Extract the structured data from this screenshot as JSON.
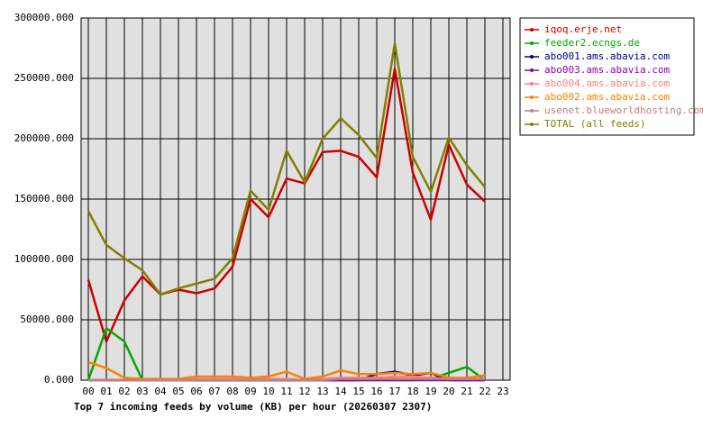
{
  "chart_data": {
    "type": "line",
    "title": "Top 7 incoming feeds by volume (KB) per hour (20260307 2307)",
    "categories": [
      "00",
      "01",
      "02",
      "03",
      "04",
      "05",
      "06",
      "07",
      "08",
      "09",
      "10",
      "11",
      "12",
      "13",
      "14",
      "15",
      "16",
      "17",
      "18",
      "19",
      "20",
      "21",
      "22",
      "23"
    ],
    "ylim": [
      0,
      300000
    ],
    "yticks": [
      {
        "value": 0,
        "label": "0.000"
      },
      {
        "value": 50000,
        "label": "50000.000"
      },
      {
        "value": 100000,
        "label": "100000.000"
      },
      {
        "value": 150000,
        "label": "150000.000"
      },
      {
        "value": 200000,
        "label": "200000.000"
      },
      {
        "value": 250000,
        "label": "250000.000"
      },
      {
        "value": 300000,
        "label": "300000.000"
      }
    ],
    "grid": true,
    "legend": "right",
    "series": [
      {
        "name": "iqoq.erje.net",
        "color": "#cc0000",
        "values": [
          83000,
          32000,
          66000,
          86000,
          71000,
          75000,
          72000,
          76000,
          94000,
          150000,
          135000,
          167000,
          163000,
          189000,
          190000,
          185000,
          168000,
          258000,
          172000,
          133000,
          195000,
          162000,
          148000,
          null
        ]
      },
      {
        "name": "feeder2.ecngs.de",
        "color": "#00aa00",
        "values": [
          0,
          43000,
          32000,
          0,
          0,
          0,
          0,
          0,
          0,
          0,
          0,
          0,
          0,
          0,
          0,
          0,
          0,
          0,
          0,
          1000,
          6000,
          11000,
          0,
          null
        ]
      },
      {
        "name": "abo001.ams.abavia.com",
        "color": "#000080",
        "values": [
          0,
          0,
          0,
          0,
          0,
          0,
          0,
          0,
          0,
          0,
          0,
          0,
          0,
          0,
          0,
          0,
          5000,
          7000,
          4000,
          6000,
          0,
          0,
          0,
          null
        ]
      },
      {
        "name": "abo003.ams.abavia.com",
        "color": "#9000b0",
        "values": [
          0,
          0,
          0,
          0,
          0,
          0,
          0,
          0,
          0,
          0,
          0,
          0,
          0,
          0,
          0,
          0,
          0,
          0,
          0,
          0,
          0,
          0,
          0,
          null
        ]
      },
      {
        "name": "abo004.ams.abavia.com",
        "color": "#ff8080",
        "values": [
          0,
          0,
          0,
          0,
          0,
          0,
          1000,
          1000,
          1000,
          1000,
          1000,
          1000,
          0,
          1000,
          2000,
          2000,
          2000,
          3000,
          3000,
          2000,
          1000,
          1000,
          1000,
          null
        ]
      },
      {
        "name": "abo002.ams.abavia.com",
        "color": "#ff8000",
        "values": [
          15000,
          10000,
          2000,
          1000,
          1000,
          1000,
          3000,
          3000,
          3000,
          2000,
          3000,
          7000,
          1000,
          3000,
          8000,
          5000,
          5000,
          6000,
          5000,
          6000,
          2000,
          2000,
          4000,
          null
        ]
      },
      {
        "name": "usenet.blueworldhosting.com",
        "color": "#c08080",
        "values": [
          0,
          0,
          0,
          0,
          0,
          0,
          0,
          0,
          0,
          0,
          0,
          0,
          0,
          0,
          1000,
          1000,
          1000,
          1000,
          1000,
          1000,
          1000,
          1000,
          1000,
          null
        ]
      },
      {
        "name": "TOTAL (all feeds)",
        "color": "#808000",
        "values": [
          140000,
          112000,
          101000,
          91000,
          71000,
          76000,
          80000,
          84000,
          101000,
          157000,
          141000,
          190000,
          164000,
          200000,
          217000,
          203000,
          184000,
          279000,
          185000,
          156000,
          201000,
          178000,
          160000,
          null
        ]
      }
    ]
  }
}
